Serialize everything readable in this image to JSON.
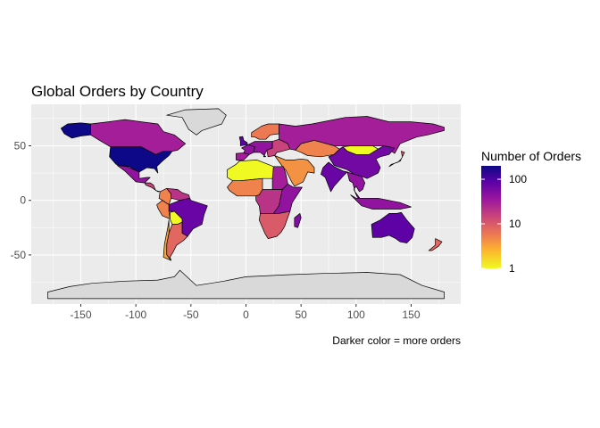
{
  "chart_data": {
    "type": "choropleth-map",
    "title": "Global Orders by Country",
    "caption": "Darker color = more orders",
    "xlim": [
      -195,
      195
    ],
    "ylim": [
      -95,
      88
    ],
    "x_ticks": [
      -150,
      -100,
      -50,
      0,
      50,
      100,
      150
    ],
    "y_ticks": [
      -50,
      0,
      50
    ],
    "grid": true,
    "legend": {
      "title": "Number of Orders",
      "scale": "log10",
      "range": [
        1,
        200
      ],
      "ticks": [
        1,
        10,
        100
      ],
      "placement": "right",
      "colors": [
        "#f0f921",
        "#fdb32f",
        "#ed7953",
        "#cc4778",
        "#9c179e",
        "#5c01a6",
        "#0d0887"
      ]
    },
    "no_data_color": "#d9d9d9",
    "regions": [
      {
        "name": "USA",
        "orders": 200
      },
      {
        "name": "Alaska",
        "orders": 200
      },
      {
        "name": "Canada",
        "orders": 30
      },
      {
        "name": "Greenland",
        "orders": null
      },
      {
        "name": "Mexico",
        "orders": 40
      },
      {
        "name": "Central America",
        "orders": 15
      },
      {
        "name": "Colombia",
        "orders": 5
      },
      {
        "name": "Venezuela",
        "orders": 20
      },
      {
        "name": "Peru",
        "orders": 5
      },
      {
        "name": "Brazil",
        "orders": 70
      },
      {
        "name": "Bolivia",
        "orders": 1
      },
      {
        "name": "Argentina",
        "orders": 8
      },
      {
        "name": "Chile",
        "orders": 3
      },
      {
        "name": "Iberia",
        "orders": 30
      },
      {
        "name": "France",
        "orders": 40
      },
      {
        "name": "UK",
        "orders": 80
      },
      {
        "name": "Scandinavia",
        "orders": 6
      },
      {
        "name": "Central Europe",
        "orders": 40
      },
      {
        "name": "Eastern Europe",
        "orders": 15
      },
      {
        "name": "Russia",
        "orders": 30
      },
      {
        "name": "Kazakhstan",
        "orders": 5
      },
      {
        "name": "Mongolia",
        "orders": 1
      },
      {
        "name": "China",
        "orders": 60
      },
      {
        "name": "India",
        "orders": 70
      },
      {
        "name": "Middle East",
        "orders": 4
      },
      {
        "name": "Southeast Asia",
        "orders": 40
      },
      {
        "name": "Japan",
        "orders": 10
      },
      {
        "name": "Indonesia",
        "orders": 40
      },
      {
        "name": "Australia",
        "orders": 80
      },
      {
        "name": "New Zealand",
        "orders": 8
      },
      {
        "name": "North Africa",
        "orders": 1
      },
      {
        "name": "Egypt",
        "orders": 30
      },
      {
        "name": "West Africa",
        "orders": 5
      },
      {
        "name": "Central Africa",
        "orders": 20
      },
      {
        "name": "East Africa",
        "orders": 40
      },
      {
        "name": "Southern Africa",
        "orders": 10
      },
      {
        "name": "Madagascar",
        "orders": 50
      },
      {
        "name": "Antarctica",
        "orders": null
      }
    ]
  }
}
